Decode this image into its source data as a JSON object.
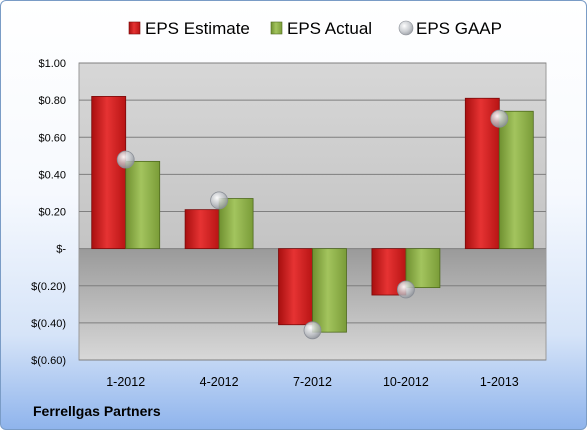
{
  "company": "Ferrellgas Partners",
  "chart_data": {
    "type": "bar",
    "categories": [
      "1-2012",
      "4-2012",
      "7-2012",
      "10-2012",
      "1-2013"
    ],
    "series": [
      {
        "name": "EPS Estimate",
        "type": "bar",
        "color": "#d42020",
        "values": [
          0.82,
          0.21,
          -0.41,
          -0.25,
          0.81
        ]
      },
      {
        "name": "EPS Actual",
        "type": "bar",
        "color": "#8fb24a",
        "values": [
          0.47,
          0.27,
          -0.45,
          -0.21,
          0.74
        ]
      },
      {
        "name": "EPS GAAP",
        "type": "scatter",
        "color": "#b8bcc4",
        "values": [
          0.48,
          0.26,
          -0.44,
          -0.22,
          0.7
        ]
      }
    ],
    "ylim": [
      -0.6,
      1.0
    ],
    "yticks": [
      1.0,
      0.8,
      0.6,
      0.4,
      0.2,
      0.0,
      -0.2,
      -0.4,
      -0.6
    ],
    "ytick_labels": [
      "$1.00",
      "$0.80",
      "$0.60",
      "$0.40",
      "$0.20",
      "$-",
      "$(0.20)",
      "$(0.40)",
      "$(0.60)"
    ],
    "grid": true,
    "legend": "top"
  }
}
